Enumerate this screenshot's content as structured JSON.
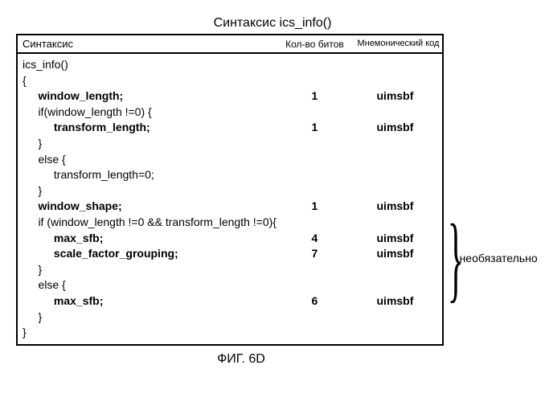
{
  "title": "Синтаксис ics_info()",
  "headers": {
    "syntax": "Синтаксис",
    "bits": "Кол-во битов",
    "mnemonic": "Мнемонический код"
  },
  "rows": [
    {
      "syn": "ics_info()",
      "bits": "",
      "mnem": "",
      "bold": false,
      "indent": 0
    },
    {
      "syn": "{",
      "bits": "",
      "mnem": "",
      "bold": false,
      "indent": 0
    },
    {
      "syn": "window_length;",
      "bits": "1",
      "mnem": "uimsbf",
      "bold": true,
      "indent": 1
    },
    {
      "syn": "if(window_length !=0) {",
      "bits": "",
      "mnem": "",
      "bold": false,
      "indent": 1
    },
    {
      "syn": "transform_length;",
      "bits": "1",
      "mnem": "uimsbf",
      "bold": true,
      "indent": 2
    },
    {
      "syn": "}",
      "bits": "",
      "mnem": "",
      "bold": false,
      "indent": 1
    },
    {
      "syn": "else {",
      "bits": "",
      "mnem": "",
      "bold": false,
      "indent": 1
    },
    {
      "syn": "transform_length=0;",
      "bits": "",
      "mnem": "",
      "bold": false,
      "indent": 2
    },
    {
      "syn": "}",
      "bits": "",
      "mnem": "",
      "bold": false,
      "indent": 1
    },
    {
      "syn": "window_shape;",
      "bits": "1",
      "mnem": "uimsbf",
      "bold": true,
      "indent": 1
    },
    {
      "syn": "if (window_length !=0 && transform_length !=0){",
      "bits": "",
      "mnem": "",
      "bold": false,
      "indent": 1
    },
    {
      "syn": "max_sfb;",
      "bits": "4",
      "mnem": "uimsbf",
      "bold": true,
      "indent": 2
    },
    {
      "syn": "scale_factor_grouping;",
      "bits": "7",
      "mnem": "uimsbf",
      "bold": true,
      "indent": 2
    },
    {
      "syn": "}",
      "bits": "",
      "mnem": "",
      "bold": false,
      "indent": 1
    },
    {
      "syn": "else {",
      "bits": "",
      "mnem": "",
      "bold": false,
      "indent": 1
    },
    {
      "syn": "max_sfb;",
      "bits": "6",
      "mnem": "uimsbf",
      "bold": true,
      "indent": 2
    },
    {
      "syn": "}",
      "bits": "",
      "mnem": "",
      "bold": false,
      "indent": 1
    },
    {
      "syn": "}",
      "bits": "",
      "mnem": "",
      "bold": false,
      "indent": 0
    }
  ],
  "optional_label": "необязательно",
  "figure_label": "ФИГ. 6D",
  "indent_unit": "     "
}
